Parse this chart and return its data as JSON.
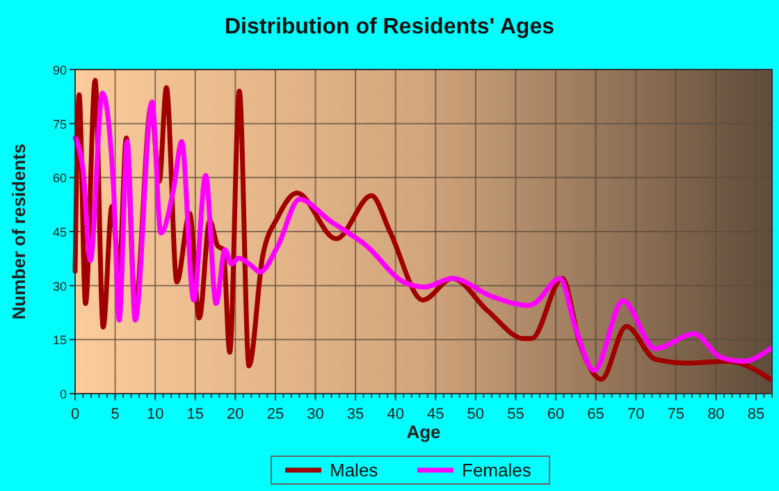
{
  "chart_data": {
    "type": "line",
    "title": "Distribution of Residents' Ages",
    "xlabel": "Age",
    "ylabel": "Number of residents",
    "xlim": [
      0,
      87
    ],
    "xticks": [
      0,
      5,
      10,
      15,
      20,
      25,
      30,
      35,
      40,
      45,
      50,
      55,
      60,
      65,
      70,
      75,
      80,
      85
    ],
    "ylim": [
      0,
      90
    ],
    "yticks": [
      0,
      15,
      30,
      45,
      60,
      75,
      90
    ],
    "grid": true,
    "legend": "bottom",
    "series": [
      {
        "name": "Males",
        "color": "#a00000",
        "x": [
          0,
          0.5,
          1.3,
          2.5,
          3.5,
          4.6,
          5.5,
          6.4,
          7.5,
          9.5,
          10.5,
          11.4,
          12.7,
          14.3,
          15.5,
          16.8,
          17.8,
          18.5,
          19.3,
          20.5,
          21.7,
          23.4,
          25.3,
          27.7,
          32.6,
          37,
          39.3,
          43.4,
          47.1,
          51.5,
          56,
          57,
          60.8,
          63,
          65.7,
          68.8,
          72.4,
          76.4,
          81.6,
          86.8
        ],
        "values": [
          34,
          83,
          25,
          87,
          18.5,
          52,
          34,
          71,
          24,
          80,
          59,
          85,
          31,
          50,
          21,
          48,
          41,
          40,
          11.5,
          84,
          7.7,
          38,
          49,
          55.7,
          43,
          55,
          45,
          26,
          32,
          23,
          15.3,
          15.3,
          32,
          14,
          4,
          18.7,
          9.6,
          8.5,
          9,
          4
        ]
      },
      {
        "name": "Females",
        "color": "#ff00ff",
        "x": [
          0,
          1,
          1.9,
          3.4,
          4.8,
          5.5,
          6.5,
          7.5,
          9.6,
          10.7,
          12.3,
          13.3,
          14.8,
          16.3,
          17.6,
          18.7,
          19.5,
          20.4,
          21.9,
          23.1,
          25.3,
          28,
          31.8,
          36.4,
          41,
          43.6,
          47.1,
          52,
          56.6,
          57.3,
          60.5,
          62.5,
          64.8,
          68.4,
          72.4,
          77.3,
          80.5,
          83.4,
          86.8
        ],
        "values": [
          71,
          62,
          37,
          83.5,
          57,
          20.4,
          70,
          20.4,
          81,
          44.6,
          57,
          70,
          26,
          60.6,
          25,
          40,
          36,
          37.6,
          35.7,
          33.8,
          41,
          54,
          48,
          41,
          31,
          29.6,
          32,
          27,
          24.5,
          25,
          32,
          18,
          6.4,
          25.8,
          12.5,
          16.6,
          10.2,
          9,
          12.5
        ]
      }
    ]
  }
}
